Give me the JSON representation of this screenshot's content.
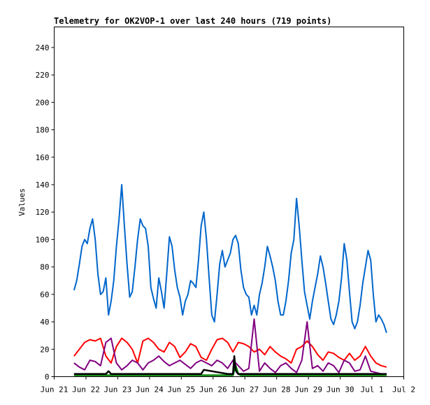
{
  "chart_data": {
    "type": "line",
    "title": "Telemetry for OK2VOP-1 over last 240 hours (719 points)",
    "xlabel": "",
    "ylabel": "Values",
    "ylim": [
      0,
      255
    ],
    "yticks": [
      0,
      20,
      40,
      60,
      80,
      100,
      120,
      140,
      160,
      180,
      200,
      220,
      240
    ],
    "xlim_hours": [
      0,
      264
    ],
    "xticks": [
      {
        "label": "Jun 21",
        "hour": 0
      },
      {
        "label": "Jun 22",
        "hour": 24
      },
      {
        "label": "Jun 23",
        "hour": 48
      },
      {
        "label": "Jun 24",
        "hour": 72
      },
      {
        "label": "Jun 25",
        "hour": 96
      },
      {
        "label": "Jun 26",
        "hour": 120
      },
      {
        "label": "Jun 27",
        "hour": 144
      },
      {
        "label": "Jun 28",
        "hour": 168
      },
      {
        "label": "Jun 29",
        "hour": 192
      },
      {
        "label": "Jun 30",
        "hour": 216
      },
      {
        "label": "Jul 1",
        "hour": 240
      },
      {
        "label": "Jul 2",
        "hour": 264
      }
    ],
    "grid": false,
    "legend": "none",
    "series": [
      {
        "color": "#0066cc",
        "x": [
          15,
          17,
          19,
          21,
          23,
          25,
          27,
          29,
          31,
          33,
          35,
          37,
          39,
          41,
          43,
          45,
          47,
          49,
          51,
          53,
          55,
          57,
          59,
          61,
          63,
          65,
          67,
          69,
          71,
          73,
          75,
          77,
          79,
          81,
          83,
          85,
          87,
          89,
          91,
          93,
          95,
          97,
          99,
          101,
          103,
          105,
          107,
          109,
          111,
          113,
          115,
          117,
          119,
          121,
          123,
          125,
          127,
          129,
          131,
          133,
          135,
          137,
          139,
          141,
          143,
          145,
          147,
          149,
          151,
          153,
          155,
          157,
          159,
          161,
          163,
          165,
          167,
          169,
          171,
          173,
          175,
          177,
          179,
          181,
          183,
          185,
          187,
          189,
          191,
          193,
          195,
          197,
          199,
          201,
          203,
          205,
          207,
          209,
          211,
          213,
          215,
          217,
          219,
          221,
          223,
          225,
          227,
          229,
          231,
          233,
          235,
          237,
          239,
          241,
          243,
          245,
          247,
          249,
          251
        ],
        "values": [
          63,
          70,
          82,
          95,
          100,
          97,
          108,
          115,
          100,
          75,
          60,
          62,
          72,
          45,
          55,
          70,
          95,
          115,
          140,
          110,
          82,
          58,
          62,
          80,
          100,
          115,
          110,
          108,
          95,
          65,
          57,
          50,
          72,
          62,
          50,
          75,
          102,
          95,
          78,
          65,
          58,
          45,
          55,
          60,
          70,
          68,
          65,
          85,
          110,
          120,
          100,
          72,
          45,
          40,
          60,
          82,
          92,
          80,
          85,
          90,
          100,
          103,
          97,
          78,
          65,
          60,
          58,
          45,
          52,
          45,
          60,
          68,
          80,
          95,
          88,
          80,
          70,
          55,
          45,
          45,
          55,
          70,
          90,
          100,
          130,
          110,
          85,
          62,
          52,
          42,
          55,
          65,
          75,
          88,
          80,
          68,
          55,
          42,
          38,
          45,
          55,
          72,
          97,
          85,
          62,
          40,
          35,
          40,
          52,
          68,
          80,
          92,
          85,
          60,
          40,
          45,
          42,
          38,
          32
        ]
      },
      {
        "color": "#ff0000",
        "x": [
          15,
          19,
          23,
          27,
          31,
          35,
          39,
          43,
          47,
          51,
          55,
          59,
          63,
          67,
          71,
          75,
          79,
          83,
          87,
          91,
          95,
          99,
          103,
          107,
          111,
          115,
          119,
          123,
          127,
          131,
          135,
          139,
          143,
          147,
          151,
          155,
          159,
          163,
          167,
          171,
          175,
          179,
          183,
          187,
          191,
          195,
          199,
          203,
          207,
          211,
          215,
          219,
          223,
          227,
          231,
          235,
          239,
          243,
          247,
          251
        ],
        "values": [
          15,
          20,
          25,
          27,
          26,
          28,
          15,
          10,
          22,
          28,
          25,
          20,
          10,
          26,
          28,
          25,
          20,
          18,
          25,
          22,
          14,
          18,
          24,
          22,
          14,
          12,
          20,
          27,
          28,
          25,
          18,
          25,
          24,
          22,
          18,
          20,
          16,
          22,
          18,
          15,
          13,
          10,
          20,
          22,
          26,
          22,
          16,
          12,
          18,
          17,
          14,
          12,
          17,
          12,
          15,
          22,
          15,
          10,
          8,
          7
        ]
      },
      {
        "color": "#800080",
        "x": [
          15,
          19,
          23,
          27,
          31,
          35,
          39,
          43,
          47,
          51,
          55,
          59,
          63,
          67,
          71,
          75,
          79,
          83,
          87,
          91,
          95,
          99,
          103,
          107,
          111,
          115,
          119,
          123,
          127,
          131,
          135,
          139,
          143,
          147,
          151,
          155,
          159,
          163,
          167,
          171,
          175,
          179,
          183,
          187,
          191,
          195,
          199,
          203,
          207,
          211,
          215,
          219,
          223,
          227,
          231,
          235,
          239,
          243,
          247,
          251
        ],
        "values": [
          10,
          7,
          5,
          12,
          11,
          8,
          25,
          28,
          10,
          5,
          8,
          12,
          10,
          5,
          10,
          12,
          15,
          11,
          8,
          10,
          12,
          9,
          6,
          10,
          12,
          10,
          8,
          12,
          10,
          6,
          12,
          8,
          4,
          6,
          42,
          4,
          10,
          6,
          3,
          8,
          10,
          6,
          3,
          12,
          40,
          6,
          8,
          4,
          10,
          8,
          3,
          12,
          10,
          4,
          5,
          15,
          4,
          3,
          2,
          2
        ]
      },
      {
        "color": "#008000",
        "x": [
          15,
          39,
          63,
          87,
          111,
          135,
          137,
          139,
          141,
          163,
          187,
          211,
          235,
          251
        ],
        "values": [
          1,
          1,
          1,
          1,
          1,
          1,
          8,
          2,
          1,
          1,
          1,
          1,
          1,
          1
        ]
      },
      {
        "color": "#000000",
        "x": [
          15,
          39,
          41,
          43,
          63,
          87,
          111,
          113,
          131,
          135,
          136,
          137,
          138,
          139,
          163,
          187,
          211,
          235,
          251
        ],
        "values": [
          2,
          2,
          4,
          2,
          2,
          2,
          2,
          5,
          2,
          2,
          15,
          5,
          3,
          2,
          2,
          2,
          2,
          2,
          2
        ]
      }
    ]
  }
}
